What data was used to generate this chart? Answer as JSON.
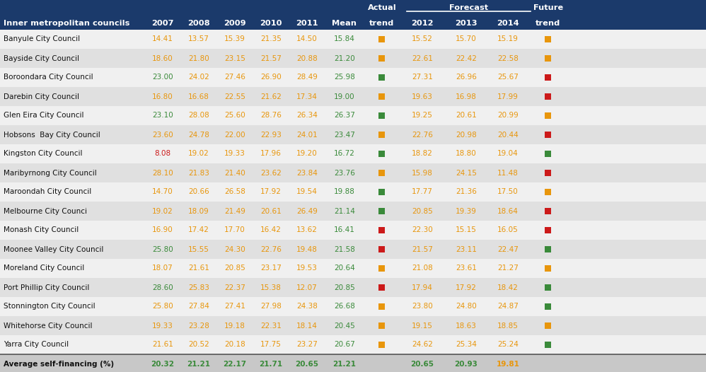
{
  "header_bg": "#1B3A6B",
  "row_bg_light": "#F0F0F0",
  "row_bg_dark": "#E0E0E0",
  "avg_row_bg": "#C8C8C8",
  "header_text_color": "#FFFFFF",
  "color_orange": "#E8960C",
  "color_green": "#3A8A3A",
  "color_red": "#CC1A1A",
  "color_data_orange": "#E8960C",
  "color_data_green": "#3A8A3A",
  "col_xs": {
    "name": 5,
    "2007": 230,
    "2008": 281,
    "2009": 332,
    "2010": 383,
    "2011": 434,
    "Mean": 487,
    "actual_trend": 540,
    "2012": 597,
    "2013": 659,
    "2014": 718,
    "future_trend": 775
  },
  "rows": [
    {
      "name": "Banyule City Council",
      "vals": [
        "14.41",
        "13.57",
        "15.39",
        "21.35",
        "14.50",
        "15.84",
        "15.52",
        "15.70",
        "15.19"
      ],
      "v2007_color": "orange",
      "actual_trend": "orange",
      "future_trend": "orange"
    },
    {
      "name": "Bayside City Council",
      "vals": [
        "18.60",
        "21.80",
        "23.15",
        "21.57",
        "20.88",
        "21.20",
        "22.61",
        "22.42",
        "22.58"
      ],
      "v2007_color": "orange",
      "actual_trend": "orange",
      "future_trend": "orange"
    },
    {
      "name": "Boroondara City Council",
      "vals": [
        "23.00",
        "24.02",
        "27.46",
        "26.90",
        "28.49",
        "25.98",
        "27.31",
        "26.96",
        "25.67"
      ],
      "v2007_color": "green",
      "actual_trend": "green",
      "future_trend": "red"
    },
    {
      "name": "Darebin City Council",
      "vals": [
        "16.80",
        "16.68",
        "22.55",
        "21.62",
        "17.34",
        "19.00",
        "19.63",
        "16.98",
        "17.99"
      ],
      "v2007_color": "orange",
      "actual_trend": "orange",
      "future_trend": "red"
    },
    {
      "name": "Glen Eira City Council",
      "vals": [
        "23.10",
        "28.08",
        "25.60",
        "28.76",
        "26.34",
        "26.37",
        "19.25",
        "20.61",
        "20.99"
      ],
      "v2007_color": "green",
      "actual_trend": "green",
      "future_trend": "orange"
    },
    {
      "name": "Hobsons  Bay City Council",
      "vals": [
        "23.60",
        "24.78",
        "22.00",
        "22.93",
        "24.01",
        "23.47",
        "22.76",
        "20.98",
        "20.44"
      ],
      "v2007_color": "orange",
      "actual_trend": "orange",
      "future_trend": "red"
    },
    {
      "name": "Kingston City Council",
      "vals": [
        "8.08",
        "19.02",
        "19.33",
        "17.96",
        "19.20",
        "16.72",
        "18.82",
        "18.80",
        "19.04"
      ],
      "v2007_color": "red",
      "actual_trend": "green",
      "future_trend": "green"
    },
    {
      "name": "Maribyrnong City Council",
      "vals": [
        "28.10",
        "21.83",
        "21.40",
        "23.62",
        "23.84",
        "23.76",
        "15.98",
        "24.15",
        "11.48"
      ],
      "v2007_color": "orange",
      "actual_trend": "orange",
      "future_trend": "red"
    },
    {
      "name": "Maroondah City Council",
      "vals": [
        "14.70",
        "20.66",
        "26.58",
        "17.92",
        "19.54",
        "19.88",
        "17.77",
        "21.36",
        "17.50"
      ],
      "v2007_color": "orange",
      "actual_trend": "green",
      "future_trend": "orange"
    },
    {
      "name": "Melbourne City Counci",
      "vals": [
        "19.02",
        "18.09",
        "21.49",
        "20.61",
        "26.49",
        "21.14",
        "20.85",
        "19.39",
        "18.64"
      ],
      "v2007_color": "orange",
      "actual_trend": "green",
      "future_trend": "red"
    },
    {
      "name": "Monash City Council",
      "vals": [
        "16.90",
        "17.42",
        "17.70",
        "16.42",
        "13.62",
        "16.41",
        "22.30",
        "15.15",
        "16.05"
      ],
      "v2007_color": "orange",
      "actual_trend": "red",
      "future_trend": "red"
    },
    {
      "name": "Moonee Valley City Council",
      "vals": [
        "25.80",
        "15.55",
        "24.30",
        "22.76",
        "19.48",
        "21.58",
        "21.57",
        "23.11",
        "22.47"
      ],
      "v2007_color": "green",
      "actual_trend": "red",
      "future_trend": "green"
    },
    {
      "name": "Moreland City Council",
      "vals": [
        "18.07",
        "21.61",
        "20.85",
        "23.17",
        "19.53",
        "20.64",
        "21.08",
        "23.61",
        "21.27"
      ],
      "v2007_color": "orange",
      "actual_trend": "orange",
      "future_trend": "orange"
    },
    {
      "name": "Port Phillip City Council",
      "vals": [
        "28.60",
        "25.83",
        "22.37",
        "15.38",
        "12.07",
        "20.85",
        "17.94",
        "17.92",
        "18.42"
      ],
      "v2007_color": "green",
      "actual_trend": "red",
      "future_trend": "green"
    },
    {
      "name": "Stonnington City Council",
      "vals": [
        "25.80",
        "27.84",
        "27.41",
        "27.98",
        "24.38",
        "26.68",
        "23.80",
        "24.80",
        "24.87"
      ],
      "v2007_color": "orange",
      "actual_trend": "orange",
      "future_trend": "green"
    },
    {
      "name": "Whitehorse City Council",
      "vals": [
        "19.33",
        "23.28",
        "19.18",
        "22.31",
        "18.14",
        "20.45",
        "19.15",
        "18.63",
        "18.85"
      ],
      "v2007_color": "orange",
      "actual_trend": "orange",
      "future_trend": "orange"
    },
    {
      "name": "Yarra City Council",
      "vals": [
        "21.61",
        "20.52",
        "20.18",
        "17.75",
        "23.27",
        "20.67",
        "24.62",
        "25.34",
        "25.24"
      ],
      "v2007_color": "orange",
      "actual_trend": "orange",
      "future_trend": "green"
    }
  ],
  "avg_row": {
    "name": "Average self-financing (%)",
    "vals": [
      "20.32",
      "21.21",
      "22.17",
      "21.71",
      "20.65",
      "21.21",
      "20.65",
      "20.93",
      "19.81"
    ],
    "last_color": "orange"
  }
}
